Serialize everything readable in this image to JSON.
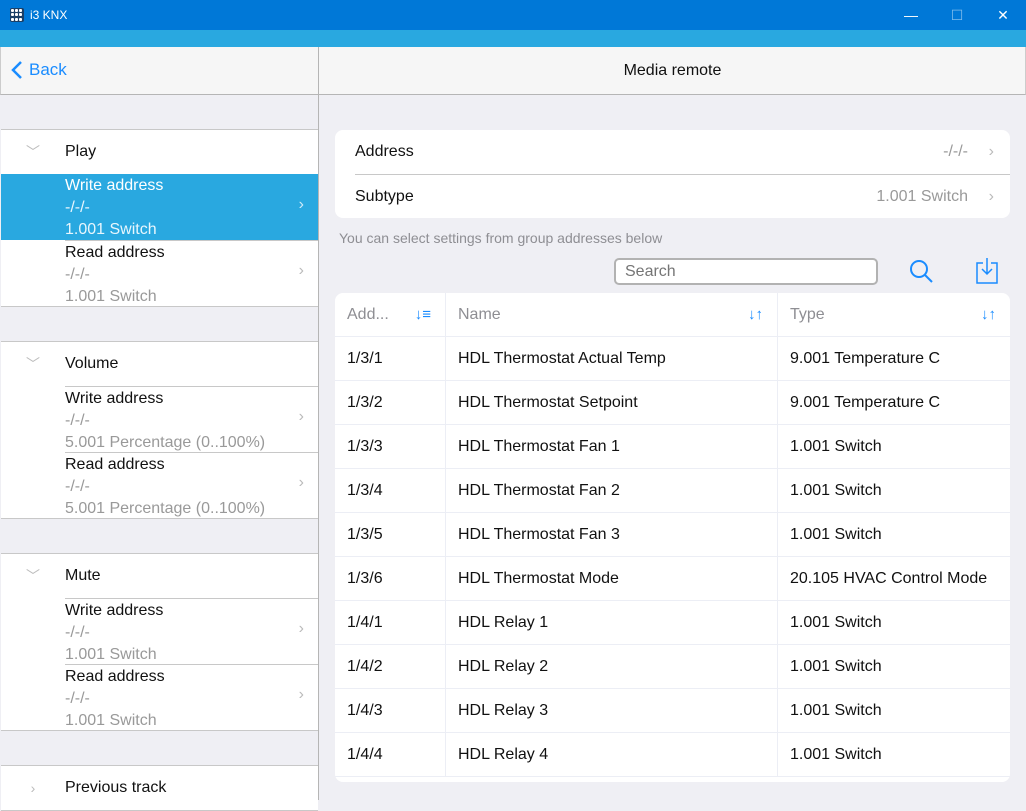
{
  "window": {
    "title": "i3 KNX",
    "minimize": "—",
    "maximize": "☐",
    "close": "✕"
  },
  "header": {
    "back_label": "Back",
    "title": "Media remote"
  },
  "sidebar": {
    "sections": [
      {
        "label": "Play",
        "expanded": true,
        "items": [
          {
            "label": "Write address",
            "address": "-/-/-",
            "type": "1.001 Switch",
            "selected": true
          },
          {
            "label": "Read address",
            "address": "-/-/-",
            "type": "1.001 Switch",
            "selected": false
          }
        ]
      },
      {
        "label": "Volume",
        "expanded": true,
        "items": [
          {
            "label": "Write address",
            "address": "-/-/-",
            "type": "5.001 Percentage (0..100%)",
            "selected": false
          },
          {
            "label": "Read address",
            "address": "-/-/-",
            "type": "5.001 Percentage (0..100%)",
            "selected": false
          }
        ]
      },
      {
        "label": "Mute",
        "expanded": true,
        "items": [
          {
            "label": "Write address",
            "address": "-/-/-",
            "type": "1.001 Switch",
            "selected": false
          },
          {
            "label": "Read address",
            "address": "-/-/-",
            "type": "1.001 Switch",
            "selected": false
          }
        ]
      },
      {
        "label": "Previous track",
        "expanded": false,
        "items": []
      }
    ]
  },
  "settings": {
    "address_label": "Address",
    "address_value": "-/-/-",
    "subtype_label": "Subtype",
    "subtype_value": "1.001 Switch"
  },
  "hint": "You can select settings from group addresses below",
  "search": {
    "placeholder": "Search",
    "value": ""
  },
  "table": {
    "columns": [
      "Add...",
      "Name",
      "Type"
    ],
    "rows": [
      [
        "1/3/1",
        "HDL Thermostat Actual Temp",
        "9.001 Temperature C"
      ],
      [
        "1/3/2",
        "HDL Thermostat Setpoint",
        "9.001 Temperature C"
      ],
      [
        "1/3/3",
        "HDL Thermostat Fan 1",
        "1.001 Switch"
      ],
      [
        "1/3/4",
        "HDL Thermostat Fan 2",
        "1.001 Switch"
      ],
      [
        "1/3/5",
        "HDL Thermostat Fan 3",
        "1.001 Switch"
      ],
      [
        "1/3/6",
        "HDL Thermostat Mode",
        "20.105 HVAC Control Mode"
      ],
      [
        "1/4/1",
        "HDL Relay 1",
        "1.001 Switch"
      ],
      [
        "1/4/2",
        "HDL Relay 2",
        "1.001 Switch"
      ],
      [
        "1/4/3",
        "HDL Relay 3",
        "1.001 Switch"
      ],
      [
        "1/4/4",
        "HDL Relay 4",
        "1.001 Switch"
      ]
    ]
  },
  "colors": {
    "titlebar": "#0078d7",
    "accent": "#29a8e0",
    "link": "#1a8cff"
  }
}
